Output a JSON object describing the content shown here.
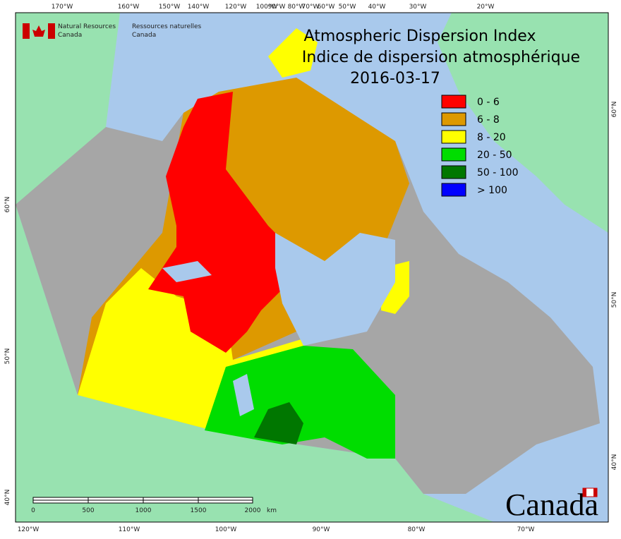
{
  "header": {
    "title": "Atmospheric Dispersion Index",
    "title_fr": "Indice de dispersion atmosphérique",
    "date": "2016-03-17"
  },
  "agency": {
    "en": [
      "Natural Resources",
      "Canada"
    ],
    "fr": [
      "Ressources naturelles",
      "Canada"
    ]
  },
  "legend": [
    {
      "label": "0 - 6",
      "color": "#ff0000"
    },
    {
      "label": "6 - 8",
      "color": "#dd9900"
    },
    {
      "label": "8 - 20",
      "color": "#ffff00"
    },
    {
      "label": "20 - 50",
      "color": "#00dd00"
    },
    {
      "label": "50 - 100",
      "color": "#007700"
    },
    {
      "label": "> 100",
      "color": "#0000ff"
    }
  ],
  "top_longitudes": [
    "170°W",
    "160°W",
    "150°W",
    "140°W",
    "120°W",
    "100°W",
    "90°W",
    "80°W",
    "70°W",
    "60°W",
    "50°W",
    "40°W",
    "30°W",
    "20°W"
  ],
  "bottom_longitudes": [
    "120°W",
    "110°W",
    "100°W",
    "90°W",
    "80°W",
    "70°W"
  ],
  "left_latitudes": [
    "60°N",
    "50°N",
    "40°N"
  ],
  "right_latitudes": [
    "60°N",
    "50°N",
    "40°N"
  ],
  "scale_bar": {
    "labels": [
      "0",
      "500",
      "1000",
      "1500",
      "2000"
    ],
    "unit": "km"
  },
  "wordmark": "Canada"
}
